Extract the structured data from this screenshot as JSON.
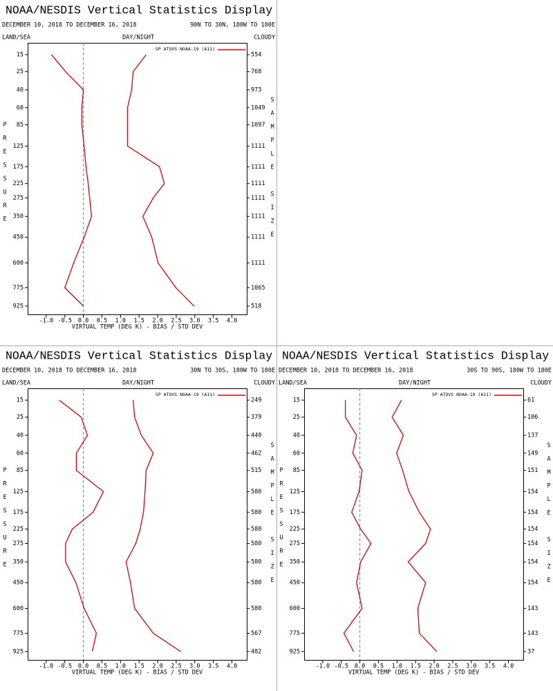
{
  "chart_data": [
    {
      "type": "line",
      "title": "NOAA/NESDIS Vertical Statistics Display",
      "date_range": "DECEMBER 10, 2018 TO DECEMBER 16, 2018",
      "region": "90N TO 30N, 180W TO 180E",
      "land_sea": "LAND/SEA",
      "day_night": "DAY/NIGHT",
      "cloudy": "CLOUDY",
      "ylabel": "PRESSURE",
      "y2label": "SAMPLE SIZE",
      "xlabel": "VIRTUAL TEMP (DEG K) - BIAS / STD DEV",
      "levels": [
        15,
        25,
        40,
        60,
        85,
        125,
        175,
        225,
        275,
        350,
        450,
        600,
        775,
        925
      ],
      "sample_size": [
        554,
        768,
        973,
        1049,
        1097,
        1111,
        1111,
        1111,
        1111,
        1111,
        1111,
        1111,
        1065,
        518
      ],
      "xlim": [
        -1.5,
        4.4
      ],
      "ylim": [
        10,
        1000
      ],
      "xticks": [
        {
          "value": -1,
          "label": "-1.0"
        },
        -0.5,
        {
          "value": 0,
          "label": "0.0"
        },
        0.5,
        {
          "value": 1,
          "label": "1.0"
        },
        1.5,
        {
          "value": 2,
          "label": "2.0"
        },
        2.5,
        {
          "value": 3,
          "label": "3.0"
        },
        3.5,
        {
          "value": 4,
          "label": "4.0"
        }
      ],
      "series": [
        {
          "name": "SP ATOVS NOAA-19 (A11)",
          "color": "#dd0000",
          "values": [
            -0.86,
            -0.48,
            0.0,
            -0.04,
            -0.04,
            0.02,
            0.07,
            0.13,
            0.17,
            0.22,
            0.02,
            -0.26,
            -0.5,
            0.0
          ],
          "std_dev": [
            1.69,
            1.34,
            1.3,
            1.19,
            1.19,
            1.19,
            2.05,
            2.18,
            1.88,
            1.6,
            1.84,
            2.01,
            2.49,
            2.98
          ]
        }
      ]
    },
    {
      "type": "line",
      "title": "NOAA/NESDIS Vertical Statistics Display",
      "date_range": "DECEMBER 10, 2018 TO DECEMBER 16, 2018",
      "region": "30N TO 30S, 180W TO 180E",
      "land_sea": "LAND/SEA",
      "day_night": "DAY/NIGHT",
      "cloudy": "CLOUDY",
      "ylabel": "PRESSURE",
      "y2label": "SAMPLE SIZE",
      "xlabel": "VIRTUAL TEMP (DEG K) - BIAS / STD DEV",
      "levels": [
        15,
        25,
        40,
        60,
        85,
        125,
        175,
        225,
        275,
        350,
        450,
        600,
        775,
        925
      ],
      "sample_size": [
        249,
        379,
        440,
        462,
        515,
        580,
        580,
        580,
        580,
        580,
        580,
        580,
        567,
        482
      ],
      "xlim": [
        -1.5,
        4.4
      ],
      "ylim": [
        10,
        1000
      ],
      "xticks": [
        {
          "value": -1,
          "label": "-1.0"
        },
        -0.5,
        {
          "value": 0,
          "label": "0.0"
        },
        0.5,
        {
          "value": 1,
          "label": "1.0"
        },
        1.5,
        {
          "value": 2,
          "label": "2.0"
        },
        2.5,
        {
          "value": 3,
          "label": "3.0"
        },
        3.5,
        {
          "value": 4,
          "label": "4.0"
        }
      ],
      "series": [
        {
          "name": "SP ATOVS NOAA-19 (A11)",
          "color": "#dd0000",
          "values": [
            -0.65,
            -0.06,
            0.11,
            -0.19,
            -0.19,
            0.54,
            0.26,
            -0.3,
            -0.48,
            -0.48,
            -0.2,
            0.02,
            0.35,
            0.24
          ],
          "std_dev": [
            1.34,
            1.38,
            1.56,
            1.88,
            1.69,
            1.66,
            1.62,
            1.53,
            1.41,
            1.15,
            1.27,
            1.38,
            1.88,
            2.62
          ]
        }
      ]
    },
    {
      "type": "line",
      "title": "NOAA/NESDIS Vertical Statistics Display",
      "date_range": "DECEMBER 10, 2018 TO DECEMBER 16, 2018",
      "region": "30S TO 90S, 180W TO 180E",
      "land_sea": "LAND/SEA",
      "day_night": "DAY/NIGHT",
      "cloudy": "CLOUDY",
      "ylabel": "PRESSURE",
      "y2label": "SAMPLE SIZE",
      "xlabel": "VIRTUAL TEMP (DEG K) - BIAS / STD DEV",
      "levels": [
        15,
        25,
        40,
        60,
        85,
        125,
        175,
        225,
        275,
        350,
        450,
        600,
        775,
        925
      ],
      "sample_size": [
        61,
        106,
        137,
        149,
        151,
        154,
        154,
        154,
        154,
        154,
        154,
        143,
        143,
        37
      ],
      "xlim": [
        -1.5,
        4.4
      ],
      "ylim": [
        10,
        1000
      ],
      "xticks": [
        {
          "value": -1,
          "label": "-1.0"
        },
        -0.5,
        {
          "value": 0,
          "label": "0.0"
        },
        0.5,
        {
          "value": 1,
          "label": "1.0"
        },
        1.5,
        {
          "value": 2,
          "label": "2.0"
        },
        2.5,
        {
          "value": 3,
          "label": "3.0"
        },
        3.5,
        {
          "value": 4,
          "label": "4.0"
        }
      ],
      "series": [
        {
          "name": "SP ATOVS NOAA-19 (A11)",
          "color": "#dd0000",
          "values": [
            -0.39,
            -0.39,
            -0.09,
            -0.19,
            0.06,
            -0.02,
            -0.22,
            0.02,
            0.3,
            0.02,
            -0.09,
            0.06,
            -0.43,
            -0.17
          ],
          "std_dev": [
            1.12,
            0.87,
            1.17,
            0.99,
            1.15,
            1.32,
            1.6,
            1.9,
            1.77,
            1.3,
            1.77,
            1.56,
            1.6,
            2.07
          ]
        }
      ]
    }
  ]
}
